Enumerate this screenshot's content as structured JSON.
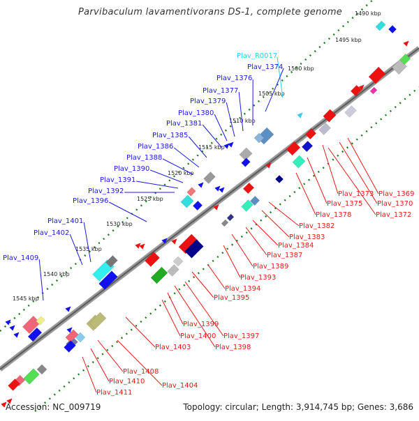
{
  "title": "Parvibaculum lavamentivorans DS-1, complete genome",
  "accession": "Accession: NC_009719",
  "summary": "Topology: circular; Length: 3,914,745 bp; Genes: 3,686",
  "colors": {
    "top_labels": "#1a1ae6",
    "bottom_labels": "#e61a1a",
    "rna_label": "#33ccee",
    "backbone": "#777777",
    "tick_dots": "#1f7a1f"
  },
  "kbp_marks": [
    "1490 kbp",
    "1495 kbp",
    "1500 kbp",
    "1505 kbp",
    "1510 kbp",
    "1515 kbp",
    "1520 kbp",
    "1525 kbp",
    "1530 kbp",
    "1535 kbp",
    "1540 kbp",
    "1545 kbp"
  ],
  "top_labels": [
    "Plav_R0017",
    "Plav_1374",
    "Plav_1376",
    "Plav_1377",
    "Plav_1379",
    "Plav_1380",
    "Plav_1381",
    "Plav_1385",
    "Plav_1386",
    "Plav_1388",
    "Plav_1390",
    "Plav_1391",
    "Plav_1392",
    "Plav_1396",
    "Plav_1401",
    "Plav_1402",
    "Plav_1409"
  ],
  "bottom_labels": [
    "Plav_1369",
    "Plav_1373",
    "Plav_1370",
    "Plav_1375",
    "Plav_1372",
    "Plav_1378",
    "Plav_1382",
    "Plav_1383",
    "Plav_1384",
    "Plav_1387",
    "Plav_1389",
    "Plav_1393",
    "Plav_1394",
    "Plav_1395",
    "Plav_1399",
    "Plav_1397",
    "Plav_1400",
    "Plav_1398",
    "Plav_1403",
    "Plav_1408",
    "Plav_1404",
    "Plav_1410",
    "Plav_1411"
  ]
}
